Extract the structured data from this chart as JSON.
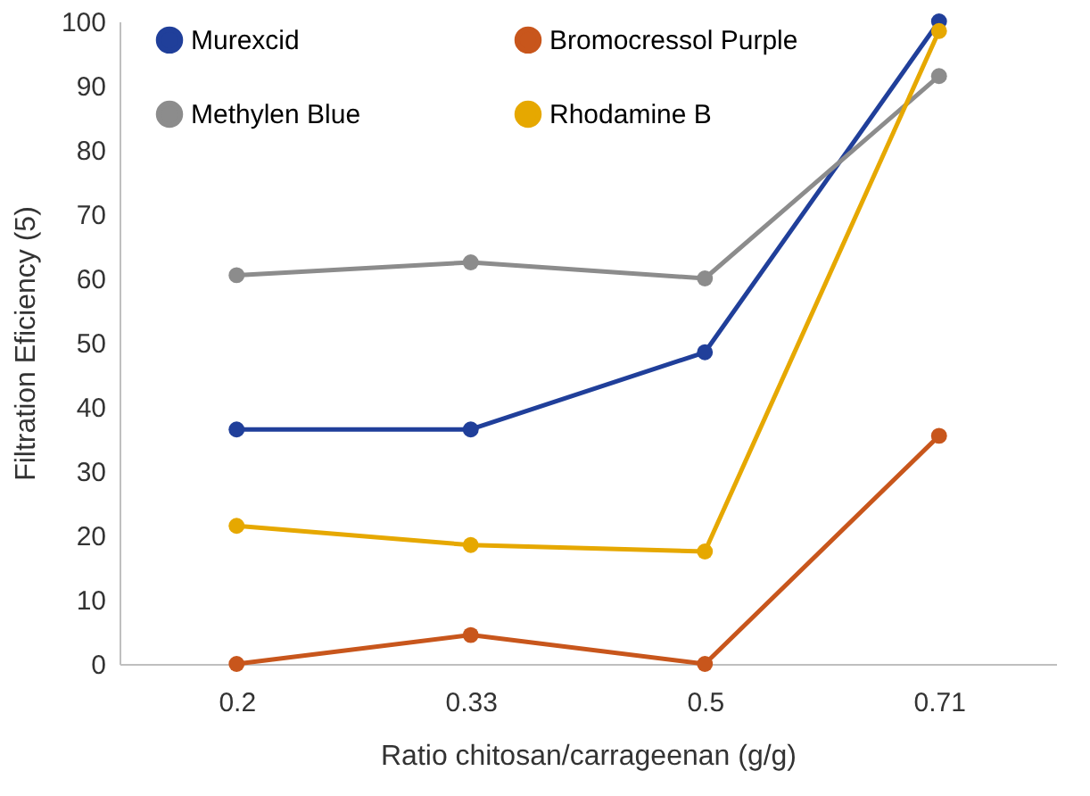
{
  "chart_data": {
    "type": "line",
    "xlabel": "Ratio chitosan/carrageenan (g/g)",
    "ylabel": "Filtration Eficiency (5)",
    "categories": [
      "0.2",
      "0.33",
      "0.5",
      "0.71"
    ],
    "series": [
      {
        "name": "Murexcid",
        "color": "#203f9a",
        "values": [
          36.5,
          36.5,
          48.5,
          100
        ]
      },
      {
        "name": "Bromocressol Purple",
        "color": "#c8561c",
        "values": [
          0,
          4.5,
          0,
          35.5
        ]
      },
      {
        "name": "Methylen Blue",
        "color": "#8c8c8c",
        "values": [
          60.5,
          62.5,
          60,
          91.5
        ]
      },
      {
        "name": "Rhodamine B",
        "color": "#e6a800",
        "values": [
          21.5,
          18.5,
          17.5,
          98.5
        ]
      }
    ],
    "ylim": [
      0,
      100
    ],
    "yticks": [
      0,
      10,
      20,
      30,
      40,
      50,
      60,
      70,
      80,
      90,
      100
    ],
    "grid": false,
    "legend": "top",
    "marker": "circle",
    "line_style": "solid"
  }
}
